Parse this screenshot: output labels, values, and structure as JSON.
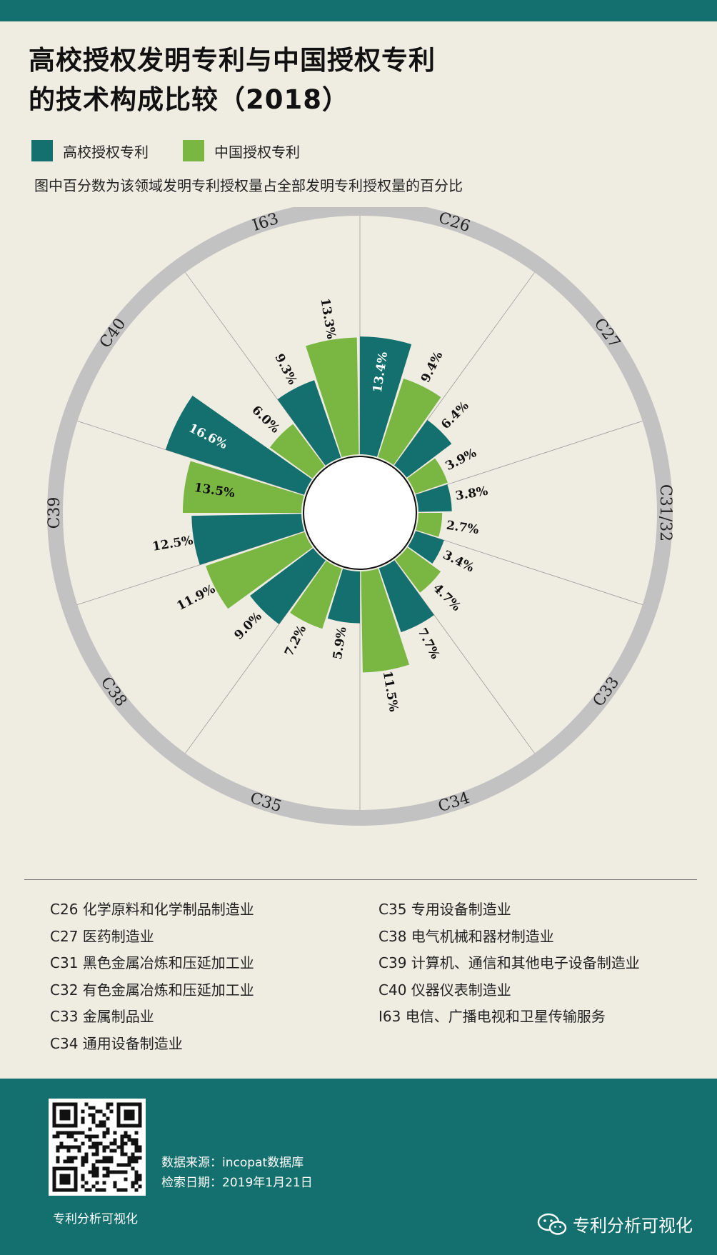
{
  "header": {
    "title_line1": "高校授权发明专利与中国授权专利",
    "title_line2": "的技术构成比较（2018）"
  },
  "legend": {
    "university_label": "高校授权专利",
    "china_label": "中国授权专利"
  },
  "note": "图中百分数为该领域发明专利授权量占全部发明专利授权量的百分比",
  "colors": {
    "university": "#14706f",
    "china": "#7ab642",
    "ring": "#c2c2c2",
    "background": "#efede2",
    "footer": "#14706f"
  },
  "chart_data": {
    "type": "polar-bar",
    "categories": [
      "C26",
      "C27",
      "C31/32",
      "C33",
      "C34",
      "C35",
      "C38",
      "C39",
      "C40",
      "I63"
    ],
    "series": [
      {
        "name": "高校授权专利",
        "values": [
          13.4,
          6.4,
          3.8,
          3.4,
          7.7,
          5.9,
          9.0,
          12.5,
          16.6,
          9.3
        ]
      },
      {
        "name": "中国授权专利",
        "values": [
          9.4,
          3.9,
          2.7,
          4.7,
          11.5,
          7.2,
          11.9,
          13.5,
          6.0,
          13.3
        ]
      }
    ],
    "labels": {
      "university": [
        "13.4%",
        "6.4%",
        "3.8%",
        "3.4%",
        "7.7%",
        "5.9%",
        "9.0%",
        "12.5%",
        "16.6%",
        "9.3%"
      ],
      "china": [
        "9.4%",
        "3.9%",
        "2.7%",
        "4.7%",
        "11.5%",
        "7.2%",
        "11.9%",
        "13.5%",
        "6.0%",
        "13.3%"
      ]
    },
    "unit": "%"
  },
  "definitions": {
    "left": [
      "C26 化学原料和化学制品制造业",
      "C27 医药制造业",
      "C31 黑色金属冶炼和压延加工业",
      "C32 有色金属冶炼和压延加工业",
      "C33 金属制品业",
      "C34 通用设备制造业"
    ],
    "right": [
      "C35 专用设备制造业",
      "C38 电气机械和器材制造业",
      "C39 计算机、通信和其他电子设备制造业",
      "C40 仪器仪表制造业",
      "I63 电信、广播电视和卫星传输服务"
    ]
  },
  "footer": {
    "qr_caption": "专利分析可视化",
    "source": "数据来源：incopat数据库",
    "date": "检索日期：2019年1月21日",
    "brand": "专利分析可视化"
  }
}
